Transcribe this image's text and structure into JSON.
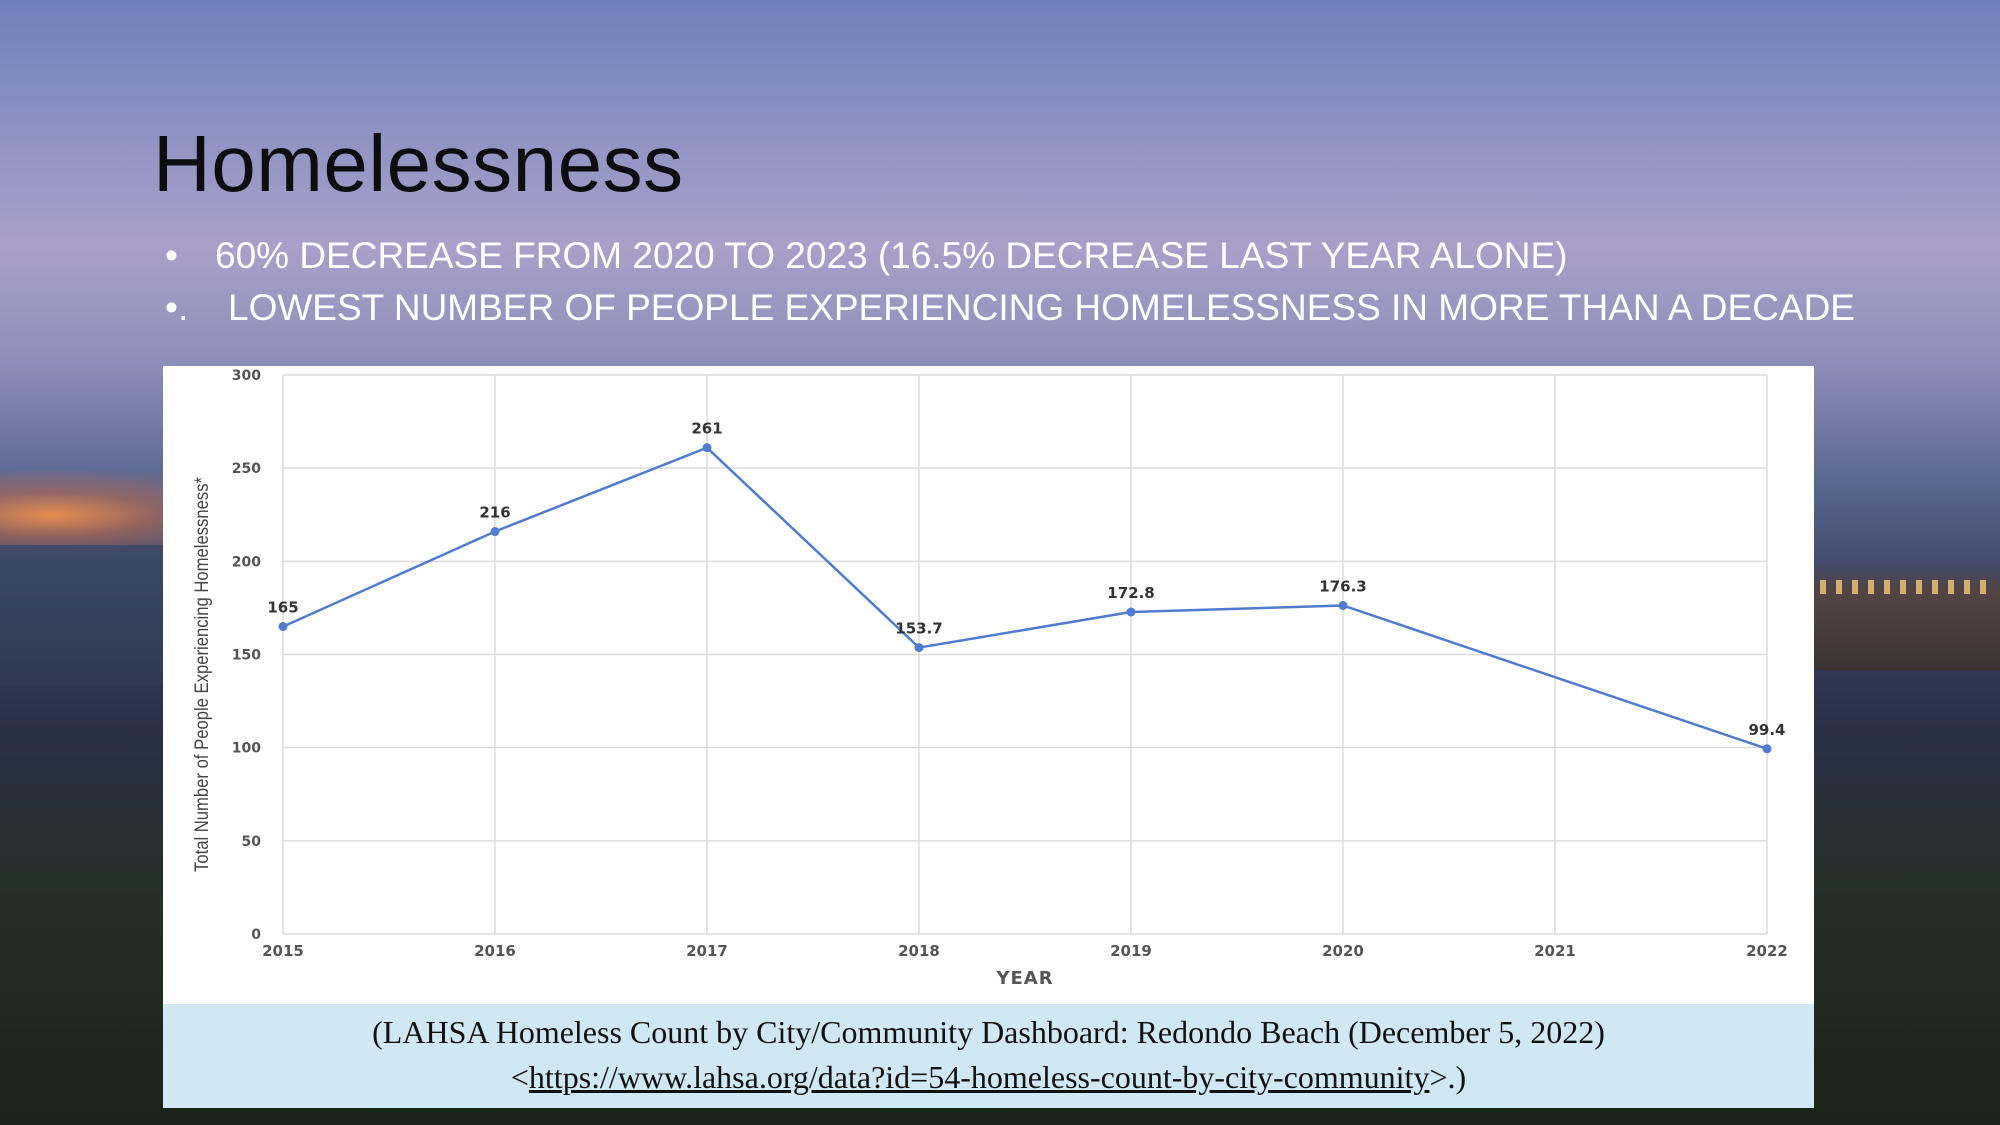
{
  "slide": {
    "title": "Homelessness",
    "bullets": [
      {
        "marker": "•",
        "text": "60% DECREASE FROM 2020 TO 2023 (16.5% DECREASE LAST YEAR ALONE)"
      },
      {
        "marker": "•.",
        "text": "LOWEST NUMBER OF PEOPLE EXPERIENCING HOMELESSNESS IN MORE THAN A DECADE"
      }
    ]
  },
  "colors": {
    "line": "#4f7ccf",
    "grid": "#dcdcdc",
    "citation_bg": "#cfe8f3"
  },
  "chart_data": {
    "type": "line",
    "title": "",
    "xlabel": "YEAR",
    "ylabel": "Total Number of People Experiencing Homelessness*",
    "x": [
      "2015",
      "2016",
      "2017",
      "2018",
      "2019",
      "2020",
      "2021",
      "2022"
    ],
    "series": [
      {
        "values": [
          165,
          216,
          261,
          153.7,
          172.8,
          176.3,
          null,
          99.4
        ],
        "labels": [
          "165",
          "216",
          "261",
          "153.7",
          "172.8",
          "176.3",
          "",
          "99.4"
        ]
      }
    ],
    "ylim": [
      0,
      300
    ],
    "yticks": [
      0,
      50,
      100,
      150,
      200,
      250,
      300
    ],
    "grid": true,
    "legend": "none"
  },
  "citation": {
    "line1": "(LAHSA Homeless Count by City/Community Dashboard: Redondo Beach (December 5, 2022)",
    "line2_open": "<",
    "url": "https://www.lahsa.org/data?id=54-homeless-count-by-city-community",
    "line2_close": ">.)"
  }
}
